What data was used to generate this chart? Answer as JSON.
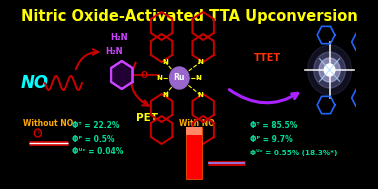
{
  "bg_color": "#000000",
  "title": "Nitric Oxide-Activated TTA Upconversion",
  "title_color": "#ffff00",
  "title_fontsize": 10.5,
  "no_label": "NO",
  "no_color": "#00ffff",
  "pet_label": "PET",
  "pet_color": "#ffff00",
  "ttet_label": "TTET",
  "ttet_color": "#ff3300",
  "ru_label": "Ru",
  "ru_color": "#cc88ff",
  "without_no_label": "Without NO",
  "without_no_color": "#ffaa00",
  "with_no_label": "With NO",
  "with_no_color": "#ffaa00",
  "phi_t1": "Φᵀ = 22.2%",
  "phi_p1": "Φᴾ = 0.5%",
  "phi_uc1": "Φᵁᶜ = 0.04%",
  "phi_t2": "Φᵀ = 85.5%",
  "phi_p2": "Φᴾ = 9.7%",
  "phi_uc2": "Φᵁᶜ = 0.55% (18.3%*)",
  "phi_color": "#00dd99",
  "h2n_color": "#cc44ff",
  "amine1": "H₂N",
  "amine2": "H₂N",
  "struct_color": "#cc0000",
  "n_color": "#ffff00",
  "o_color": "#cc0000"
}
